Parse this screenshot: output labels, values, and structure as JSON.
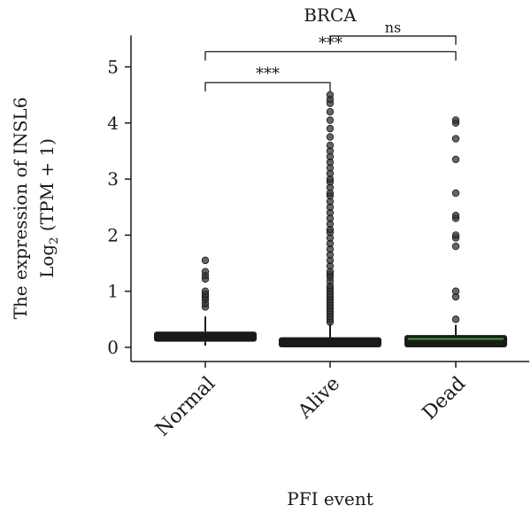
{
  "chart_data": {
    "type": "box",
    "title": "BRCA",
    "xlabel": "PFI event",
    "ylabel_line1": "The expression of INSL6",
    "ylabel_line2_prefix": "Log",
    "ylabel_line2_sub": "2",
    "ylabel_line2_suffix": " (TPM + 1)",
    "ylim": [
      -0.3,
      5.55
    ],
    "yticks": [
      0,
      1,
      2,
      3,
      4,
      5
    ],
    "ytick_labels": [
      "0",
      "1",
      "2",
      "3",
      "4",
      "5"
    ],
    "categories": [
      "Normal",
      "Alive",
      "Dead"
    ],
    "boxes": [
      {
        "name": "Normal",
        "q1": 0.1,
        "median": 0.18,
        "q3": 0.28,
        "whisker_low": 0.03,
        "whisker_high": 0.55,
        "median_color": "#1a1a1a",
        "outliers": [
          0.72,
          0.78,
          0.85,
          0.9,
          0.95,
          1.0,
          1.22,
          1.28,
          1.35,
          1.55
        ]
      },
      {
        "name": "Alive",
        "q1": 0.0,
        "median": 0.05,
        "q3": 0.18,
        "whisker_low": 0.0,
        "whisker_high": 0.42,
        "median_color": "#1a1a1a",
        "outliers": [
          0.45,
          0.5,
          0.55,
          0.6,
          0.65,
          0.7,
          0.75,
          0.8,
          0.85,
          0.9,
          0.95,
          1.0,
          1.05,
          1.1,
          1.18,
          1.25,
          1.3,
          1.35,
          1.45,
          1.55,
          1.65,
          1.75,
          1.85,
          1.95,
          2.05,
          2.1,
          2.2,
          2.3,
          2.4,
          2.5,
          2.6,
          2.7,
          2.75,
          2.85,
          2.95,
          3.0,
          3.1,
          3.2,
          3.3,
          3.4,
          3.5,
          3.6,
          3.75,
          3.9,
          4.05,
          4.2,
          4.35,
          4.42,
          4.5
        ]
      },
      {
        "name": "Dead",
        "q1": 0.0,
        "median": 0.15,
        "q3": 0.22,
        "whisker_low": 0.0,
        "whisker_high": 0.4,
        "median_color": "#3a9a3a",
        "outliers": [
          0.5,
          0.9,
          1.0,
          1.8,
          1.95,
          2.0,
          2.3,
          2.35,
          2.75,
          3.35,
          3.72,
          4.0,
          4.05
        ]
      }
    ],
    "significance": [
      {
        "from": 0,
        "to": 1,
        "y": 4.72,
        "label": "***"
      },
      {
        "from": 0,
        "to": 2,
        "y": 5.27,
        "label": "***"
      },
      {
        "from": 1,
        "to": 2,
        "y": 5.55,
        "label": "ns"
      }
    ],
    "colors": {
      "box": "#1a1a1a",
      "outlier": "#333333"
    }
  }
}
